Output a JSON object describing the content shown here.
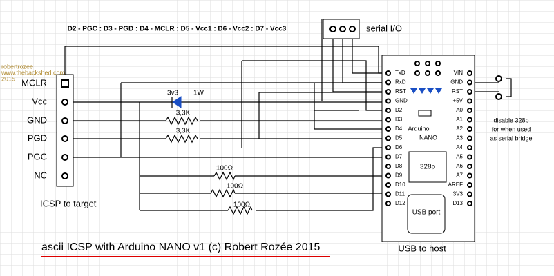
{
  "header": {
    "pin_map": "D2 - PGC   :   D3 - PGD   :   D4 - MCLR   :   D5 - Vcc1   :   D6 - Vcc2   :   D7 - Vcc3"
  },
  "watermark": [
    "robertrozee",
    "www.thebackshed.com",
    "2015"
  ],
  "serial": {
    "label": "serial I/O"
  },
  "icsp": {
    "pins": [
      "MCLR",
      "Vcc",
      "GND",
      "PGD",
      "PGC",
      "NC"
    ],
    "label": "ICSP to target"
  },
  "components": {
    "zener_voltage": "3v3",
    "zener_power": "1W",
    "resistors": [
      "3,3K",
      "3,3K",
      "100Ω",
      "100Ω",
      "100Ω"
    ]
  },
  "arduino": {
    "left_pins": [
      "TxD",
      "RxD",
      "RST",
      "GND",
      "D2",
      "D3",
      "D4",
      "D5",
      "D6",
      "D7",
      "D8",
      "D9",
      "D10",
      "D11",
      "D12"
    ],
    "right_pins": [
      "VIN",
      "GND",
      "RST",
      "+5V",
      "A0",
      "A1",
      "A2",
      "A3",
      "A4",
      "A5",
      "A6",
      "A7",
      "AREF",
      "3V3",
      "D13"
    ],
    "name_lines": [
      "Arduino",
      "NANO"
    ],
    "chip": "328p",
    "usb": "USB port",
    "label": "USB to host"
  },
  "note": [
    "disable 328p",
    "for when used",
    "as serial bridge"
  ],
  "title": "ascii ICSP with Arduino NANO  v1  (c) Robert Rozée  2015"
}
